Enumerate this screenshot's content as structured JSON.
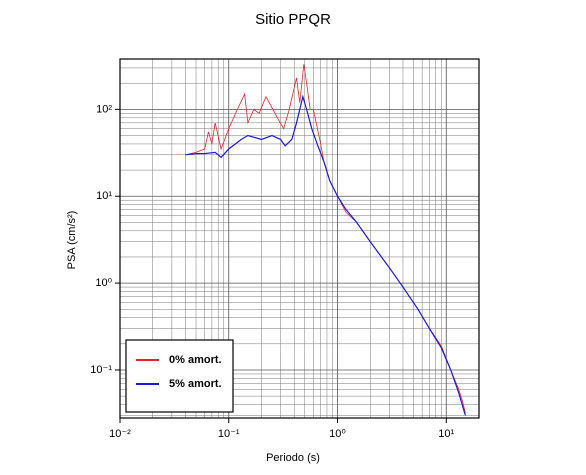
{
  "chart_data": {
    "type": "line",
    "title": "Sitio PPQR",
    "x_label": "Periodo (s)",
    "y_label": "PSA (cm/s²)",
    "log_x": true,
    "log_y": true,
    "grid": true,
    "minor_grid": true,
    "legend": "lower left",
    "xlim": [
      0.01,
      20
    ],
    "ylim": [
      0.028,
      380
    ],
    "xticks": [
      {
        "value": 0.01,
        "label": "10⁻²"
      },
      {
        "value": 0.1,
        "label": "10⁻¹"
      },
      {
        "value": 1,
        "label": "10⁰"
      },
      {
        "value": 10,
        "label": "10¹"
      }
    ],
    "yticks": [
      {
        "value": 0.1,
        "label": "10⁻¹"
      },
      {
        "value": 1,
        "label": "10⁰"
      },
      {
        "value": 10,
        "label": "10¹"
      },
      {
        "value": 100,
        "label": "10²"
      }
    ],
    "series": [
      {
        "name": "0% amort.",
        "color": "#e8242a",
        "x": [
          0.04,
          0.05,
          0.06,
          0.065,
          0.07,
          0.075,
          0.085,
          0.1,
          0.12,
          0.14,
          0.15,
          0.17,
          0.19,
          0.22,
          0.28,
          0.32,
          0.36,
          0.42,
          0.45,
          0.49,
          0.52,
          0.56,
          0.6,
          0.7,
          0.75,
          0.85,
          1.0,
          1.2,
          1.5,
          2,
          3,
          4,
          5.5,
          7,
          9,
          11,
          13,
          14,
          15
        ],
        "values": [
          30,
          32,
          35,
          55,
          40,
          70,
          35,
          60,
          100,
          150,
          70,
          100,
          90,
          140,
          80,
          60,
          100,
          230,
          120,
          330,
          200,
          100,
          100,
          40,
          25,
          15,
          10,
          6.5,
          5,
          3,
          1.5,
          0.9,
          0.5,
          0.3,
          0.19,
          0.1,
          0.06,
          0.045,
          0.032
        ]
      },
      {
        "name": "5% amort.",
        "color": "#1a1adf",
        "x": [
          0.04,
          0.05,
          0.06,
          0.075,
          0.08,
          0.085,
          0.1,
          0.13,
          0.15,
          0.2,
          0.25,
          0.3,
          0.33,
          0.38,
          0.42,
          0.45,
          0.48,
          0.52,
          0.58,
          0.65,
          0.75,
          0.85,
          1.0,
          1.2,
          1.5,
          2,
          3,
          4,
          5.5,
          7,
          9,
          11,
          13,
          14,
          15
        ],
        "values": [
          30,
          31,
          31,
          32,
          30,
          28,
          35,
          45,
          50,
          45,
          50,
          45,
          38,
          45,
          70,
          100,
          140,
          100,
          60,
          40,
          25,
          15,
          10,
          7,
          5,
          3,
          1.5,
          0.9,
          0.5,
          0.3,
          0.18,
          0.1,
          0.055,
          0.04,
          0.03
        ]
      }
    ]
  }
}
